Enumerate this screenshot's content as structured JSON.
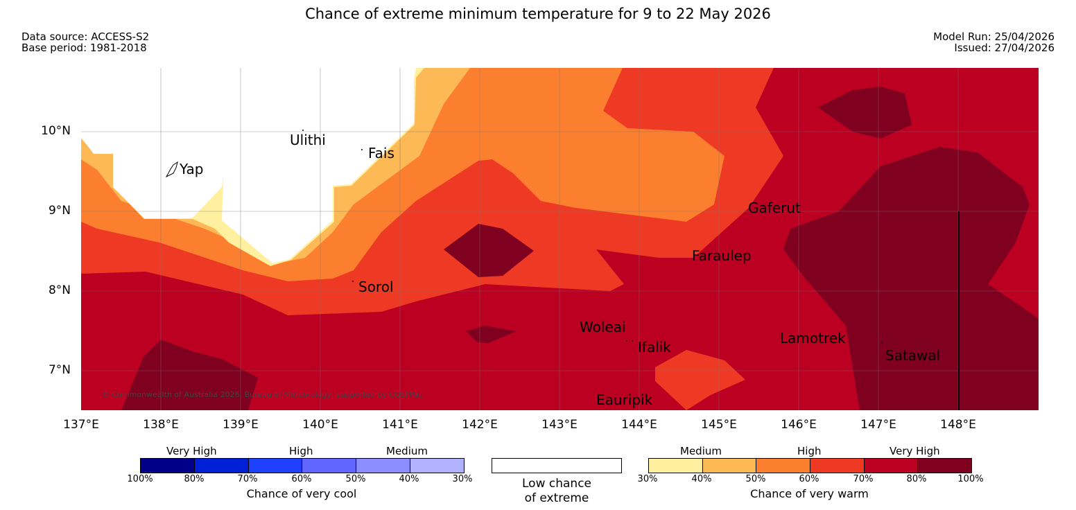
{
  "title": "Chance of extreme minimum temperature for 9 to 22 May 2026",
  "data_source": "Data source: ACCESS-S2",
  "base_period": "Base period: 1981-2018",
  "model_run": "Model Run: 25/04/2026",
  "issued": "Issued: 27/04/2026",
  "latitudes": [
    "10°N",
    "9°N",
    "8°N",
    "7°N"
  ],
  "longitudes": [
    "137°E",
    "138°E",
    "139°E",
    "140°E",
    "141°E",
    "142°E",
    "143°E",
    "144°E",
    "145°E",
    "146°E",
    "147°E",
    "148°E"
  ],
  "places": {
    "yap": "Yap",
    "ulithi": "Ulithi",
    "fais": "Fais",
    "sorol": "Sorol",
    "gaferut": "Gaferut",
    "faraulep": "Faraulep",
    "woleai": "Woleai",
    "ifalik": "Ifalik",
    "lamotrek": "Lamotrek",
    "satawal": "Satawal",
    "eauripik": "Eauripik"
  },
  "copyright": "© Commonwealth of Australia 2026, Bureau of Meteorology, supported by COSPPac",
  "legend": {
    "cool": {
      "category_labels": [
        "Very High",
        "High",
        "Medium"
      ],
      "ticks": [
        "100%",
        "80%",
        "70%",
        "60%",
        "50%",
        "40%",
        "30%"
      ],
      "title": "Chance of very cool",
      "colors": [
        "#00008b",
        "#0020d8",
        "#2040ff",
        "#6066ff",
        "#8a8cff",
        "#b0b2ff"
      ]
    },
    "low": {
      "line1": "Low chance",
      "line2": "of extreme"
    },
    "warm": {
      "category_labels": [
        "Medium",
        "High",
        "Very High"
      ],
      "ticks": [
        "30%",
        "40%",
        "50%",
        "60%",
        "70%",
        "80%",
        "100%"
      ],
      "title": "Chance of very warm",
      "colors": [
        "#fff0a0",
        "#fcb955",
        "#fb7f2f",
        "#ee3924",
        "#bb0021",
        "#800020"
      ]
    }
  }
}
